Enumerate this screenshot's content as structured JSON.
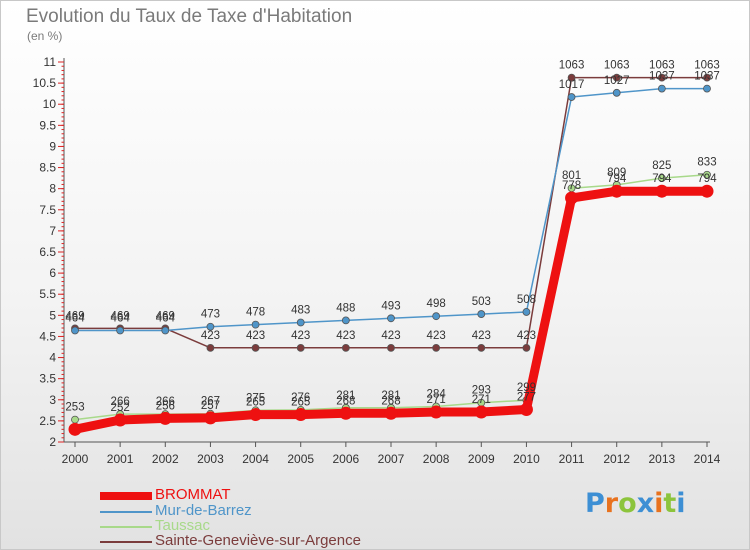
{
  "title": "Evolution du Taux de Taxe d'Habitation",
  "subtitle": "(en %)",
  "logo": {
    "text": "Proxiti",
    "letter_colors": [
      "#3d8fd4",
      "#e8721e",
      "#8cc43c",
      "#3d8fd4",
      "#e8721e",
      "#8cc43c",
      "#3d8fd4"
    ]
  },
  "chart_data": {
    "type": "line",
    "x": [
      "2000",
      "2001",
      "2002",
      "2003",
      "2004",
      "2005",
      "2006",
      "2007",
      "2008",
      "2009",
      "2010",
      "2011",
      "2012",
      "2013",
      "2014"
    ],
    "ylim": [
      2,
      11
    ],
    "yticks": [
      "2",
      "2.5",
      "3",
      "3.5",
      "4",
      "4.5",
      "5",
      "5.5",
      "6",
      "6.5",
      "7",
      "7.5",
      "8",
      "8.5",
      "9",
      "9.5",
      "10",
      "10.5",
      "11"
    ],
    "grid": false,
    "legend_position": "bottom-left",
    "series": [
      {
        "name": "BROMMAT",
        "color": "#ee1111",
        "values": [
          2.3,
          2.52,
          2.56,
          2.57,
          2.65,
          2.65,
          2.68,
          2.68,
          2.71,
          2.71,
          2.77,
          7.78,
          7.94,
          7.94,
          7.94
        ],
        "labels": [
          "",
          "252",
          "256",
          "257",
          "265",
          "265",
          "268",
          "268",
          "271",
          "271",
          "277",
          "778",
          "794",
          "794",
          "794"
        ]
      },
      {
        "name": "Mur-de-Barrez",
        "color": "#4f95c9",
        "values": [
          4.64,
          4.64,
          4.64,
          4.73,
          4.78,
          4.83,
          4.88,
          4.93,
          4.98,
          5.03,
          5.08,
          10.17,
          10.27,
          10.37,
          10.37
        ],
        "labels": [
          "464",
          "464",
          "464",
          "473",
          "478",
          "483",
          "488",
          "493",
          "498",
          "503",
          "508",
          "1017",
          "1027",
          "1037",
          "1037"
        ]
      },
      {
        "name": "Taussac",
        "color": "#a8d98a",
        "values": [
          2.53,
          2.66,
          2.66,
          2.67,
          2.75,
          2.76,
          2.81,
          2.81,
          2.84,
          2.93,
          2.99,
          8.01,
          8.09,
          8.25,
          8.33
        ],
        "labels": [
          "253",
          "266",
          "266",
          "267",
          "275",
          "276",
          "281",
          "281",
          "284",
          "293",
          "299",
          "801",
          "809",
          "825",
          "833"
        ]
      },
      {
        "name": "Sainte-Geneviève-sur-Argence",
        "color": "#7b3c3c",
        "values": [
          4.69,
          4.69,
          4.69,
          4.23,
          4.23,
          4.23,
          4.23,
          4.23,
          4.23,
          4.23,
          4.23,
          10.63,
          10.63,
          10.63,
          10.63
        ],
        "labels": [
          "469",
          "469",
          "469",
          "423",
          "423",
          "423",
          "423",
          "423",
          "423",
          "423",
          "423",
          "1063",
          "1063",
          "1063",
          "1063"
        ]
      }
    ]
  }
}
